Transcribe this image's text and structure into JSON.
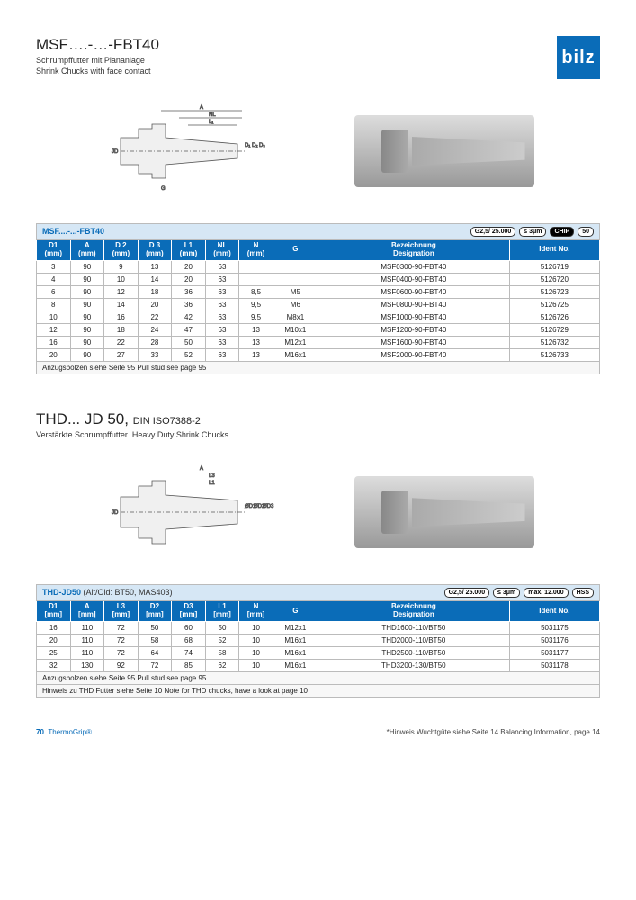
{
  "logo": "bilz",
  "section1": {
    "title": "MSF….-…-FBT40",
    "sub_de": "Schrumpffutter mit Plananlage",
    "sub_en": "Shrink Chucks with face contact",
    "table_title": "MSF....-...-FBT40",
    "badges": [
      "G2,5/\n25.000",
      "≤ 3μm",
      "CHIP",
      "50"
    ],
    "columns": [
      "D1\n(mm)",
      "A\n(mm)",
      "D 2\n(mm)",
      "D 3\n(mm)",
      "L1\n(mm)",
      "NL\n(mm)",
      "N\n(mm)",
      "G",
      "Bezeichnung\nDesignation",
      "Ident No."
    ],
    "rows": [
      [
        "3",
        "90",
        "9",
        "13",
        "20",
        "63",
        "",
        "",
        "MSF0300-90-FBT40",
        "5126719"
      ],
      [
        "4",
        "90",
        "10",
        "14",
        "20",
        "63",
        "",
        "",
        "MSF0400-90-FBT40",
        "5126720"
      ],
      [
        "6",
        "90",
        "12",
        "18",
        "36",
        "63",
        "8,5",
        "M5",
        "MSF0600-90-FBT40",
        "5126723"
      ],
      [
        "8",
        "90",
        "14",
        "20",
        "36",
        "63",
        "9,5",
        "M6",
        "MSF0800-90-FBT40",
        "5126725"
      ],
      [
        "10",
        "90",
        "16",
        "22",
        "42",
        "63",
        "9,5",
        "M8x1",
        "MSF1000-90-FBT40",
        "5126726"
      ],
      [
        "12",
        "90",
        "18",
        "24",
        "47",
        "63",
        "13",
        "M10x1",
        "MSF1200-90-FBT40",
        "5126729"
      ],
      [
        "16",
        "90",
        "22",
        "28",
        "50",
        "63",
        "13",
        "M12x1",
        "MSF1600-90-FBT40",
        "5126732"
      ],
      [
        "20",
        "90",
        "27",
        "33",
        "52",
        "63",
        "13",
        "M16x1",
        "MSF2000-90-FBT40",
        "5126733"
      ]
    ],
    "note": "Anzugsbolzen siehe Seite 95  Pull stud see page 95"
  },
  "section2": {
    "title_a": "THD... JD",
    "title_b": "50,",
    "title_din": "DIN ISO7388-2",
    "sub_de": "Verstärkte Schrumpffutter",
    "sub_en": "Heavy Duty Shrink Chucks",
    "table_title": "THD-JD50",
    "table_alt": " (Alt/Old: BT50, MAS403)",
    "badges": [
      "G2,5/\n25.000",
      "≤ 3μm",
      "max.\n12.000",
      "HSS"
    ],
    "columns": [
      "D1\n[mm]",
      "A\n[mm]",
      "L3\n[mm]",
      "D2\n[mm]",
      "D3\n[mm]",
      "L1\n[mm]",
      "N\n[mm]",
      "G",
      "Bezeichnung\nDesignation",
      "Ident No."
    ],
    "rows": [
      [
        "16",
        "110",
        "72",
        "50",
        "60",
        "50",
        "10",
        "M12x1",
        "THD1600-110/BT50",
        "5031175"
      ],
      [
        "20",
        "110",
        "72",
        "58",
        "68",
        "52",
        "10",
        "M16x1",
        "THD2000-110/BT50",
        "5031176"
      ],
      [
        "25",
        "110",
        "72",
        "64",
        "74",
        "58",
        "10",
        "M16x1",
        "THD2500-110/BT50",
        "5031177"
      ],
      [
        "32",
        "130",
        "92",
        "72",
        "85",
        "62",
        "10",
        "M16x1",
        "THD3200-130/BT50",
        "5031178"
      ]
    ],
    "note1": "Anzugsbolzen siehe Seite 95  Pull stud see page 95",
    "note2": "Hinweis zu THD Futter siehe Seite 10  Note for THD chucks, have a look at page 10"
  },
  "footer": {
    "page": "70",
    "brand": "ThermoGrip®",
    "hinweis": "*Hinweis Wuchtgüte siehe Seite 14 Balancing Information, page 14"
  },
  "colwidths": [
    "6%",
    "6%",
    "6%",
    "6%",
    "6%",
    "6%",
    "6%",
    "8%",
    "34%",
    "16%"
  ]
}
